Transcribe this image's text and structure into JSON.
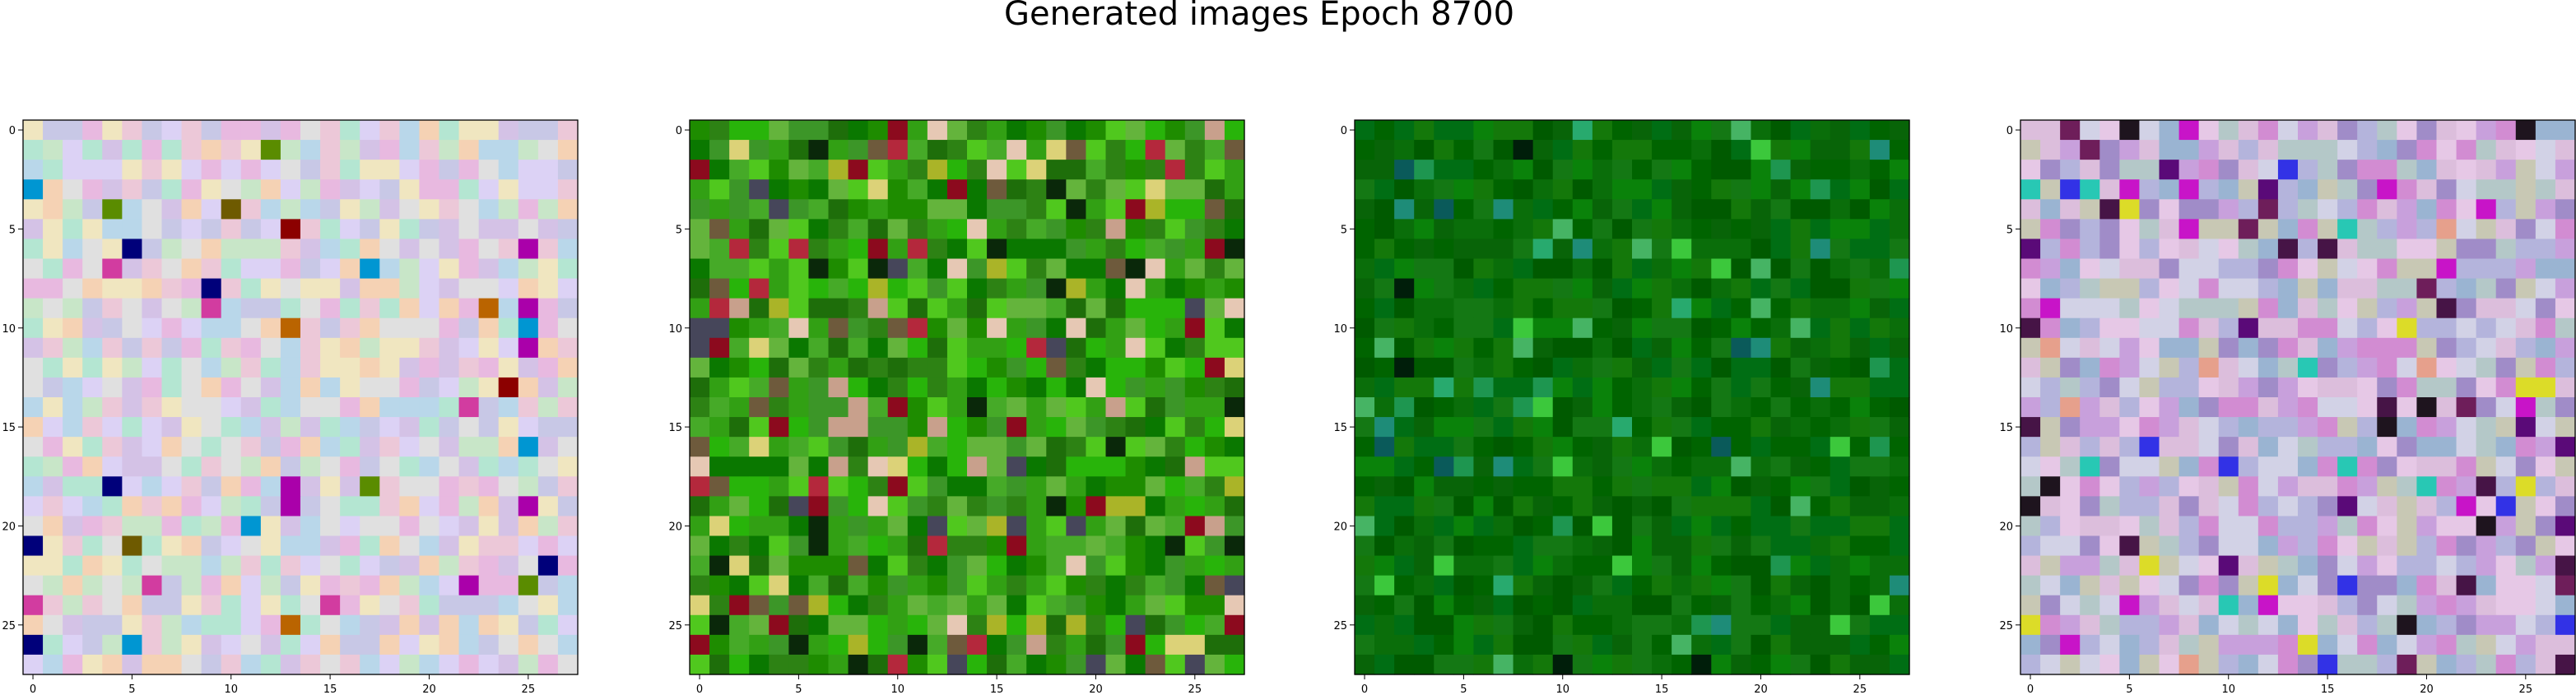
{
  "title": "Generated images Epoch 8700",
  "chart_data": {
    "type": "heatmap",
    "title": "Generated images Epoch 8700",
    "panels": [
      {
        "name": "",
        "grid_size": 28,
        "xlim": [
          -0.5,
          27.5
        ],
        "ylim": [
          27.5,
          -0.5
        ],
        "xticks": [
          0,
          5,
          10,
          15,
          20,
          25
        ],
        "yticks": [
          0,
          5,
          10,
          15,
          20,
          25
        ],
        "palette": [
          "#d4c2e6",
          "#e8b9e0",
          "#b9d7ea",
          "#c8e6c8",
          "#f0e6c0",
          "#dcd2f5",
          "#ecc8d8",
          "#c8c8e6",
          "#e0e0e0",
          "#f5d2b4",
          "#b4e6d2"
        ],
        "accents": [
          "#8c0000",
          "#ba6400",
          "#00007a",
          "#0096d2",
          "#d23ca0",
          "#aa00aa",
          "#5a8c00",
          "#6e5a00"
        ],
        "accent_rate": 0.05
      },
      {
        "name": "",
        "grid_size": 28,
        "xlim": [
          -0.5,
          27.5
        ],
        "ylim": [
          27.5,
          -0.5
        ],
        "xticks": [
          0,
          5,
          10,
          15,
          20,
          25
        ],
        "yticks": [
          0,
          5,
          10,
          15,
          20,
          25
        ],
        "palette": [
          "#1e8c00",
          "#32a014",
          "#28b40a",
          "#46aa28",
          "#0a7800",
          "#64b43c",
          "#3c9628",
          "#50c81e",
          "#2d8214",
          "#1e6e0a"
        ],
        "accents": [
          "#8c0a1e",
          "#b4283c",
          "#dcd278",
          "#c8a08c",
          "#0a280a",
          "#46465a",
          "#e6c8b4",
          "#aab428",
          "#6e5a3c"
        ],
        "accent_rate": 0.22
      },
      {
        "name": "",
        "grid_size": 28,
        "xlim": [
          -0.5,
          27.5
        ],
        "ylim": [
          27.5,
          -0.5
        ],
        "xticks": [
          0,
          5,
          10,
          15,
          20,
          25
        ],
        "yticks": [
          0,
          5,
          10,
          15,
          20,
          25
        ],
        "palette": [
          "#006400",
          "#0a6e0a",
          "#14780a",
          "#005a00",
          "#0a820a",
          "#006e14",
          "#147814",
          "#086408"
        ],
        "accents": [
          "#1e9650",
          "#28aa6e",
          "#0a5a5a",
          "#46b464",
          "#001e0a",
          "#3cc83c",
          "#1e8c78"
        ],
        "accent_rate": 0.09
      },
      {
        "name": "",
        "grid_size": 28,
        "xlim": [
          -0.5,
          27.5
        ],
        "ylim": [
          27.5,
          -0.5
        ],
        "xticks": [
          0,
          5,
          10,
          15,
          20,
          25
        ],
        "yticks": [
          0,
          5,
          10,
          15,
          20,
          25
        ],
        "palette": [
          "#c8a0dc",
          "#b4b4dc",
          "#dcbedc",
          "#a08cc8",
          "#d2d2e6",
          "#c8c8b4",
          "#9ab4d2",
          "#e6c8e6",
          "#b4c8c8",
          "#d28cd2"
        ],
        "accents": [
          "#c814c8",
          "#461446",
          "#6e1e5a",
          "#3232e6",
          "#dcdc28",
          "#28c8b4",
          "#5a0a78",
          "#1e141e",
          "#e6a08c"
        ],
        "accent_rate": 0.1
      }
    ]
  }
}
